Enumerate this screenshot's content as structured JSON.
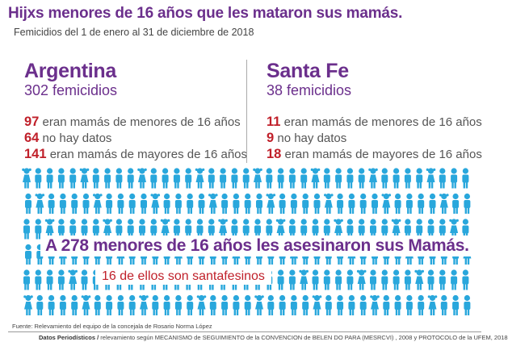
{
  "header": {
    "title": "Hijxs menores de 16 años que les mataron sus mamás.",
    "subtitle": "Femicidios  del 1 de enero al 31 de diciembre de 2018"
  },
  "regions": [
    {
      "name": "Argentina",
      "count_label": "302 femicidios",
      "stats": [
        {
          "value": "97",
          "text": "eran mamás de menores de 16 años"
        },
        {
          "value": "64",
          "text": "no hay datos"
        },
        {
          "value": "141",
          "text": "eran mamás de mayores de 16 años"
        }
      ]
    },
    {
      "name": "Santa Fe",
      "count_label": "38 femicidios",
      "stats": [
        {
          "value": "11",
          "text": "eran mamás de menores de 16 años"
        },
        {
          "value": "9",
          "text": "no hay datos"
        },
        {
          "value": "18",
          "text": "eran mamás de mayores de 16 años"
        }
      ]
    }
  ],
  "pictogram": {
    "headline": "A 278 menores de 16 años les asesinaron sus Mamás.",
    "santafe_note": "16 de ellos son santafesinos",
    "icon_name": "child-figure-icon",
    "boy_color": "#29a7dc",
    "girl_color": "#29a7dc"
  },
  "source": "Fuente: Relevamiento del equipo de la concejala de Rosario Norma López",
  "footer": {
    "org": "Datos Periodísticos /",
    "text": " relevamiento según MECANISMO de SEGUIMIENTO de la CONVENCION de BELEN DO PARA (MESRCVI) , 2008 y PROTOCOLO de la UFEM, 2018"
  },
  "colors": {
    "accent_purple": "#6b2f8c",
    "accent_red": "#c0202a",
    "icon_blue": "#29a7dc"
  }
}
